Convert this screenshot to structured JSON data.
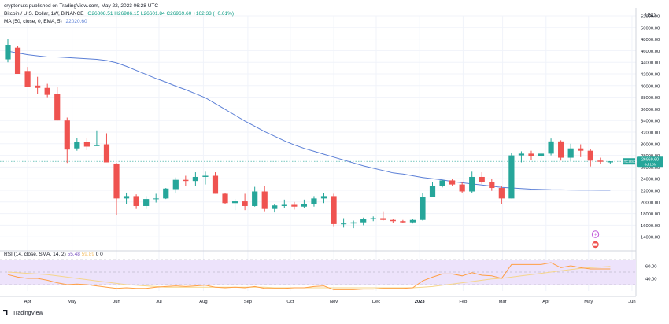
{
  "header": {
    "published": "cryptonuts published on TradingView.com, May 22, 2023 06:28 UTC",
    "symbol": "Bitcoin / U.S. Dollar, 1W, BINANCE",
    "ohlc": "O26808.51 H26986.15 L26601.84 C26969.60 +162.33 (+0.61%)",
    "ma_label": "MA (50, close, 0, EMA, 5)",
    "ma_value": "22020.60"
  },
  "rsi_header": {
    "label": "RSI (14, close, SMA, 14, 2)",
    "rsi_value": "55.48",
    "sma_value": "59.89",
    "extra": "0  0"
  },
  "footer": {
    "brand": "TradingView"
  },
  "price_badge": {
    "symbol": "BTCUSD",
    "price": "26969.60",
    "countdown": "6d 18h"
  },
  "colors": {
    "up": "#26a69a",
    "down": "#ef5350",
    "ma": "#5b7fd6",
    "rsi": "#ff9f45",
    "rsi_sma": "#f5d58c",
    "rsi_band": "#ede3fb",
    "badge": "#26a69a"
  },
  "chart_data": {
    "type": "candlestick",
    "currency_label": "USD",
    "ylim": [
      12000,
      52000
    ],
    "y_ticks": [
      "52000.00",
      "50000.00",
      "48000.00",
      "46000.00",
      "44000.00",
      "42000.00",
      "40000.00",
      "38000.00",
      "36000.00",
      "34000.00",
      "32000.00",
      "30000.00",
      "28000.00",
      "26000.00",
      "24000.00",
      "22000.00",
      "20000.00",
      "18000.00",
      "16000.00",
      "14000.00"
    ],
    "x_labels": [
      {
        "label": "Apr",
        "week": 2
      },
      {
        "label": "May",
        "week": 6.5
      },
      {
        "label": "Jun",
        "week": 11
      },
      {
        "label": "Jul",
        "week": 15.3
      },
      {
        "label": "Aug",
        "week": 19.8
      },
      {
        "label": "Sep",
        "week": 24.3
      },
      {
        "label": "Oct",
        "week": 28.6
      },
      {
        "label": "Nov",
        "week": 33
      },
      {
        "label": "Dec",
        "week": 37.3
      },
      {
        "label": "2023",
        "week": 41.7
      },
      {
        "label": "Feb",
        "week": 46.1
      },
      {
        "label": "Mar",
        "week": 50.1
      },
      {
        "label": "Apr",
        "week": 54.5
      },
      {
        "label": "May",
        "week": 58.8
      },
      {
        "label": "Jun",
        "week": 63.2
      }
    ],
    "x_range": [
      0,
      64
    ],
    "candles": [
      {
        "o": 44500,
        "h": 48000,
        "l": 44000,
        "c": 47000
      },
      {
        "o": 46500,
        "h": 46800,
        "l": 42000,
        "c": 42000
      },
      {
        "o": 42500,
        "h": 43200,
        "l": 39800,
        "c": 39800
      },
      {
        "o": 40000,
        "h": 41500,
        "l": 38500,
        "c": 39600
      },
      {
        "o": 39600,
        "h": 40300,
        "l": 38000,
        "c": 38400
      },
      {
        "o": 38500,
        "h": 39700,
        "l": 34000,
        "c": 34000
      },
      {
        "o": 34000,
        "h": 34500,
        "l": 26700,
        "c": 29000
      },
      {
        "o": 29200,
        "h": 31000,
        "l": 28800,
        "c": 30300
      },
      {
        "o": 30300,
        "h": 31000,
        "l": 28900,
        "c": 29500
      },
      {
        "o": 29600,
        "h": 32300,
        "l": 29600,
        "c": 29800
      },
      {
        "o": 29900,
        "h": 31800,
        "l": 26800,
        "c": 26800
      },
      {
        "o": 26600,
        "h": 26700,
        "l": 17800,
        "c": 20600
      },
      {
        "o": 20600,
        "h": 21600,
        "l": 19700,
        "c": 21000
      },
      {
        "o": 21000,
        "h": 21300,
        "l": 18800,
        "c": 19300
      },
      {
        "o": 19300,
        "h": 21000,
        "l": 18800,
        "c": 20500
      },
      {
        "o": 20500,
        "h": 21400,
        "l": 19900,
        "c": 20600
      },
      {
        "o": 20600,
        "h": 22400,
        "l": 20500,
        "c": 22300
      },
      {
        "o": 22200,
        "h": 24200,
        "l": 21600,
        "c": 23800
      },
      {
        "o": 23800,
        "h": 24500,
        "l": 22800,
        "c": 23600
      },
      {
        "o": 23600,
        "h": 25100,
        "l": 22700,
        "c": 24300
      },
      {
        "o": 24300,
        "h": 25200,
        "l": 23000,
        "c": 24500
      },
      {
        "o": 24500,
        "h": 25100,
        "l": 21400,
        "c": 21400
      },
      {
        "o": 21400,
        "h": 21600,
        "l": 19600,
        "c": 19800
      },
      {
        "o": 19800,
        "h": 20500,
        "l": 18600,
        "c": 20100
      },
      {
        "o": 20100,
        "h": 21400,
        "l": 18600,
        "c": 19300
      },
      {
        "o": 19300,
        "h": 22600,
        "l": 19200,
        "c": 21800
      },
      {
        "o": 21800,
        "h": 22700,
        "l": 18400,
        "c": 18800
      },
      {
        "o": 18800,
        "h": 19600,
        "l": 18200,
        "c": 19400
      },
      {
        "o": 19300,
        "h": 20400,
        "l": 18900,
        "c": 19500
      },
      {
        "o": 19500,
        "h": 20000,
        "l": 18700,
        "c": 19200
      },
      {
        "o": 19200,
        "h": 20400,
        "l": 18900,
        "c": 19600
      },
      {
        "o": 19600,
        "h": 21000,
        "l": 19200,
        "c": 20600
      },
      {
        "o": 20600,
        "h": 21500,
        "l": 19800,
        "c": 21000
      },
      {
        "o": 21000,
        "h": 21400,
        "l": 15700,
        "c": 16200
      },
      {
        "o": 16200,
        "h": 17200,
        "l": 15600,
        "c": 16300
      },
      {
        "o": 16300,
        "h": 16800,
        "l": 15500,
        "c": 16500
      },
      {
        "o": 16500,
        "h": 17300,
        "l": 16000,
        "c": 17100
      },
      {
        "o": 17100,
        "h": 17500,
        "l": 16700,
        "c": 17200
      },
      {
        "o": 17200,
        "h": 18400,
        "l": 16800,
        "c": 16900
      },
      {
        "o": 16900,
        "h": 17100,
        "l": 16400,
        "c": 16700
      },
      {
        "o": 16700,
        "h": 16900,
        "l": 16400,
        "c": 16500
      },
      {
        "o": 16500,
        "h": 17000,
        "l": 16300,
        "c": 16900
      },
      {
        "o": 16900,
        "h": 21500,
        "l": 16800,
        "c": 20900
      },
      {
        "o": 20900,
        "h": 23400,
        "l": 20800,
        "c": 22700
      },
      {
        "o": 22700,
        "h": 23800,
        "l": 22500,
        "c": 23700
      },
      {
        "o": 23700,
        "h": 23900,
        "l": 22700,
        "c": 23000
      },
      {
        "o": 23000,
        "h": 23400,
        "l": 21600,
        "c": 21800
      },
      {
        "o": 21800,
        "h": 25200,
        "l": 21500,
        "c": 24300
      },
      {
        "o": 24300,
        "h": 25100,
        "l": 23100,
        "c": 23400
      },
      {
        "o": 23400,
        "h": 23900,
        "l": 21900,
        "c": 22400
      },
      {
        "o": 22400,
        "h": 22700,
        "l": 19600,
        "c": 20600
      },
      {
        "o": 20600,
        "h": 28400,
        "l": 20600,
        "c": 28000
      },
      {
        "o": 28000,
        "h": 28700,
        "l": 26800,
        "c": 28300
      },
      {
        "o": 28300,
        "h": 28800,
        "l": 27200,
        "c": 27900
      },
      {
        "o": 27900,
        "h": 28500,
        "l": 27200,
        "c": 28300
      },
      {
        "o": 28300,
        "h": 30900,
        "l": 28000,
        "c": 30400
      },
      {
        "o": 30400,
        "h": 30600,
        "l": 27100,
        "c": 27600
      },
      {
        "o": 27600,
        "h": 30000,
        "l": 27000,
        "c": 29200
      },
      {
        "o": 29200,
        "h": 29900,
        "l": 27700,
        "c": 28800
      },
      {
        "o": 28800,
        "h": 29100,
        "l": 26100,
        "c": 27100
      },
      {
        "o": 27100,
        "h": 27600,
        "l": 26600,
        "c": 26900
      },
      {
        "o": 26800,
        "h": 27000,
        "l": 26600,
        "c": 26970
      }
    ],
    "ma_series": [
      45900,
      45600,
      45300,
      45100,
      44900,
      44900,
      44800,
      44700,
      44600,
      44500,
      44300,
      43900,
      43300,
      42600,
      41900,
      41200,
      40600,
      39900,
      39300,
      38600,
      37900,
      36900,
      35900,
      34900,
      33900,
      33000,
      32100,
      31300,
      30500,
      29800,
      29200,
      28700,
      28200,
      27700,
      27200,
      26700,
      26200,
      25800,
      25400,
      25000,
      24800,
      24500,
      24200,
      24000,
      23800,
      23500,
      23300,
      23100,
      22900,
      22700,
      22500,
      22400,
      22300,
      22200,
      22150,
      22100,
      22080,
      22060,
      22040,
      22030,
      22020,
      22020
    ],
    "rsi": {
      "ylim": [
        20,
        80
      ],
      "y_ticks": [
        "60.00",
        "40.00"
      ],
      "levels": [
        70,
        50,
        30
      ],
      "values": [
        46,
        42,
        40,
        40,
        37,
        33,
        30,
        31,
        30,
        28,
        26,
        24,
        25,
        24,
        24,
        26,
        27,
        28,
        27,
        28,
        29,
        26,
        25,
        26,
        25,
        27,
        24,
        24,
        24,
        25,
        25,
        27,
        28,
        22,
        22,
        22,
        23,
        23,
        24,
        24,
        24,
        25,
        36,
        42,
        47,
        47,
        44,
        49,
        45,
        44,
        40,
        62,
        62,
        62,
        62,
        65,
        57,
        60,
        57,
        55,
        55,
        55
      ],
      "sma_values": [
        50,
        49,
        48,
        47,
        46,
        44,
        42,
        40,
        38,
        36,
        34,
        32,
        30,
        29,
        28,
        27,
        26,
        26,
        26,
        26,
        26,
        26,
        26,
        26,
        26,
        26,
        26,
        25,
        25,
        25,
        25,
        25,
        25,
        25,
        25,
        25,
        25,
        25,
        25,
        25,
        25,
        25,
        26,
        27,
        29,
        31,
        33,
        35,
        37,
        39,
        40,
        42,
        44,
        46,
        48,
        50,
        52,
        54,
        56,
        57,
        58,
        59
      ]
    }
  }
}
